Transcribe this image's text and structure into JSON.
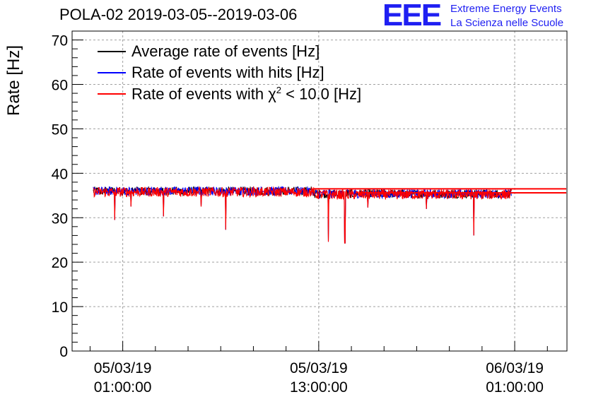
{
  "header": {
    "title": "POLA-02 2019-03-05--2019-03-06",
    "logo_text": "EEE",
    "logo_line1": "Extreme Energy Events",
    "logo_line2": "La Scienza nelle Scuole",
    "logo_color": "#1f1ff2"
  },
  "chart_data": {
    "type": "line",
    "title": "POLA-02 2019-03-05--2019-03-06",
    "xlabel": "",
    "ylabel": "Rate [Hz]",
    "ylim": [
      0,
      72
    ],
    "yticks": [
      0,
      10,
      20,
      30,
      40,
      50,
      60,
      70
    ],
    "grid": true,
    "legend_position": "top-left",
    "x_unit": "hours since 05/03/19 00:00",
    "xlim": [
      -2.1,
      28.2
    ],
    "xticks": [
      {
        "x": 1,
        "line1": "05/03/19",
        "line2": "01:00:00"
      },
      {
        "x": 13,
        "line1": "05/03/19",
        "line2": "13:00:00"
      },
      {
        "x": 25,
        "line1": "06/03/19",
        "line2": "01:00:00"
      }
    ],
    "series": [
      {
        "name": "Average rate of events [Hz]",
        "color": "#000000",
        "mean_level": 36.0,
        "x_start": -0.8,
        "x_end": 24.8
      },
      {
        "name": "Rate of events with hits [Hz]",
        "color": "#0000ff",
        "mean_level": 36.0,
        "x_start": -0.8,
        "x_end": 24.8
      },
      {
        "name_prefix": "Rate of events with ",
        "name_symbol": "χ",
        "name_sup": "2",
        "name_suffix": " < 10.0 [Hz]",
        "name": "Rate of events with χ2 < 10.0 [Hz]",
        "color": "#ff0000",
        "mean_level": 35.8,
        "x_start": -0.8,
        "x_end": 24.8
      }
    ],
    "red_baseline": {
      "segments": [
        {
          "x_start": 12.7,
          "x_end": 28.2,
          "y": 36.5
        },
        {
          "x_start": 15.5,
          "x_end": 28.2,
          "y": 35.6
        }
      ]
    },
    "dips": [
      {
        "x": 0.5,
        "y": 29.5
      },
      {
        "x": 3.5,
        "y": 30.3
      },
      {
        "x": 7.3,
        "y": 27.3
      },
      {
        "x": 13.6,
        "y": 24.6
      },
      {
        "x": 14.6,
        "y": 24.3
      },
      {
        "x": 22.5,
        "y": 26.0
      },
      {
        "x": 1.5,
        "y": 32.5
      },
      {
        "x": 5.8,
        "y": 32.5
      },
      {
        "x": 16.0,
        "y": 32.3
      },
      {
        "x": 19.6,
        "y": 32.0
      }
    ]
  }
}
